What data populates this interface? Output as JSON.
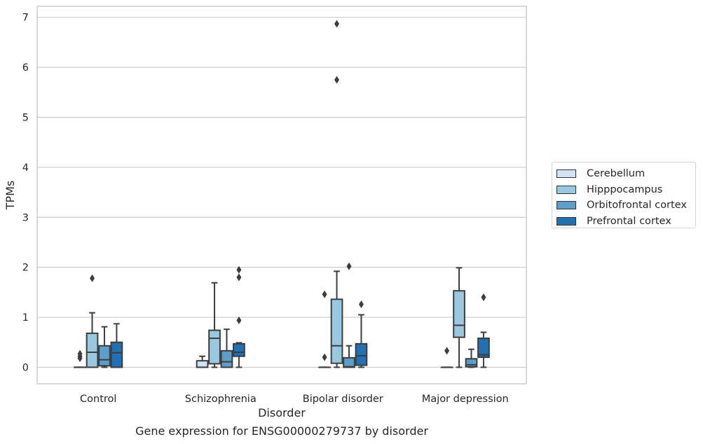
{
  "caption": "Gene expression for ENSG00000279737 by disorder",
  "chart_data": {
    "type": "box",
    "xlabel": "Disorder",
    "ylabel": "TPMs",
    "ylim": [
      -0.33,
      7.22
    ],
    "yticks": [
      0,
      1,
      2,
      3,
      4,
      5,
      6,
      7
    ],
    "grid": "horizontal",
    "legend_placement": "right",
    "categories": [
      "Control",
      "Schizophrenia",
      "Bipolar disorder",
      "Major depression"
    ],
    "series": [
      {
        "name": "Cerebellum",
        "color": "#d2e3f3",
        "boxes": [
          {
            "whislo": 0,
            "q1": 0,
            "med": 0,
            "q3": 0,
            "whishi": 0,
            "fliers": [
              0.18,
              0.22,
              0.27
            ]
          },
          {
            "whislo": 0,
            "q1": 0,
            "med": 0,
            "q3": 0.13,
            "whishi": 0.22,
            "fliers": []
          },
          {
            "whislo": 0,
            "q1": 0,
            "med": 0,
            "q3": 0,
            "whishi": 0,
            "fliers": [
              0.2,
              1.46
            ]
          },
          {
            "whislo": 0,
            "q1": 0,
            "med": 0,
            "q3": 0,
            "whishi": 0,
            "fliers": [
              0.33
            ]
          }
        ]
      },
      {
        "name": "Hipppocampus",
        "color": "#9ac8e0",
        "boxes": [
          {
            "whislo": 0,
            "q1": 0,
            "med": 0.3,
            "q3": 0.68,
            "whishi": 1.09,
            "fliers": [
              1.78
            ]
          },
          {
            "whislo": 0,
            "q1": 0.07,
            "med": 0.58,
            "q3": 0.74,
            "whishi": 1.69,
            "fliers": []
          },
          {
            "whislo": 0,
            "q1": 0.08,
            "med": 0.43,
            "q3": 1.36,
            "whishi": 1.92,
            "fliers": [
              5.75,
              6.87
            ]
          },
          {
            "whislo": 0,
            "q1": 0.6,
            "med": 0.84,
            "q3": 1.53,
            "whishi": 1.99,
            "fliers": []
          }
        ]
      },
      {
        "name": "Orbitofrontal cortex",
        "color": "#5a9ec9",
        "boxes": [
          {
            "whislo": 0,
            "q1": 0.03,
            "med": 0.15,
            "q3": 0.43,
            "whishi": 0.81,
            "fliers": []
          },
          {
            "whislo": 0,
            "q1": 0,
            "med": 0.11,
            "q3": 0.33,
            "whishi": 0.76,
            "fliers": []
          },
          {
            "whislo": 0,
            "q1": 0,
            "med": 0.01,
            "q3": 0.19,
            "whishi": 0.43,
            "fliers": [
              2.02
            ]
          },
          {
            "whislo": 0,
            "q1": 0.01,
            "med": 0.05,
            "q3": 0.17,
            "whishi": 0.36,
            "fliers": []
          }
        ]
      },
      {
        "name": "Prefrontal cortex",
        "color": "#2070b4",
        "boxes": [
          {
            "whislo": 0,
            "q1": 0,
            "med": 0.29,
            "q3": 0.5,
            "whishi": 0.87,
            "fliers": []
          },
          {
            "whislo": 0,
            "q1": 0.22,
            "med": 0.3,
            "q3": 0.47,
            "whishi": 0.49,
            "fliers": [
              0.94,
              1.8,
              1.95
            ]
          },
          {
            "whislo": 0,
            "q1": 0.04,
            "med": 0.23,
            "q3": 0.47,
            "whishi": 1.05,
            "fliers": [
              1.26
            ]
          },
          {
            "whislo": 0,
            "q1": 0.2,
            "med": 0.25,
            "q3": 0.58,
            "whishi": 0.7,
            "fliers": [
              1.4
            ]
          }
        ]
      }
    ]
  }
}
